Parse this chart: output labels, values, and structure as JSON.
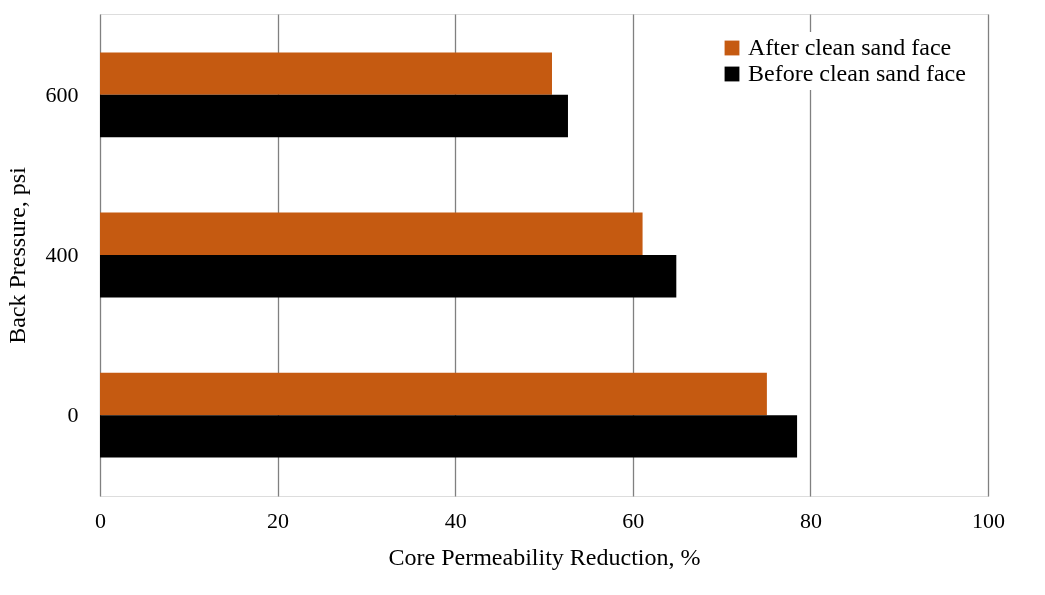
{
  "chart_data": {
    "type": "bar",
    "orientation": "horizontal",
    "xlabel": "Core Permeability Reduction, %",
    "ylabel": "Back Pressure, psi",
    "categories": [
      "600",
      "400",
      "0"
    ],
    "series": [
      {
        "name": "After clean sand face",
        "color": "#c55a11",
        "values": [
          50.9,
          61.1,
          75.1
        ]
      },
      {
        "name": "Before clean sand face",
        "color": "#000000",
        "values": [
          52.7,
          64.9,
          78.5
        ]
      }
    ],
    "xlim": [
      0,
      100
    ],
    "xticks": [
      0,
      20,
      40,
      60,
      80,
      100
    ],
    "grid": "x",
    "legend": "top right"
  }
}
